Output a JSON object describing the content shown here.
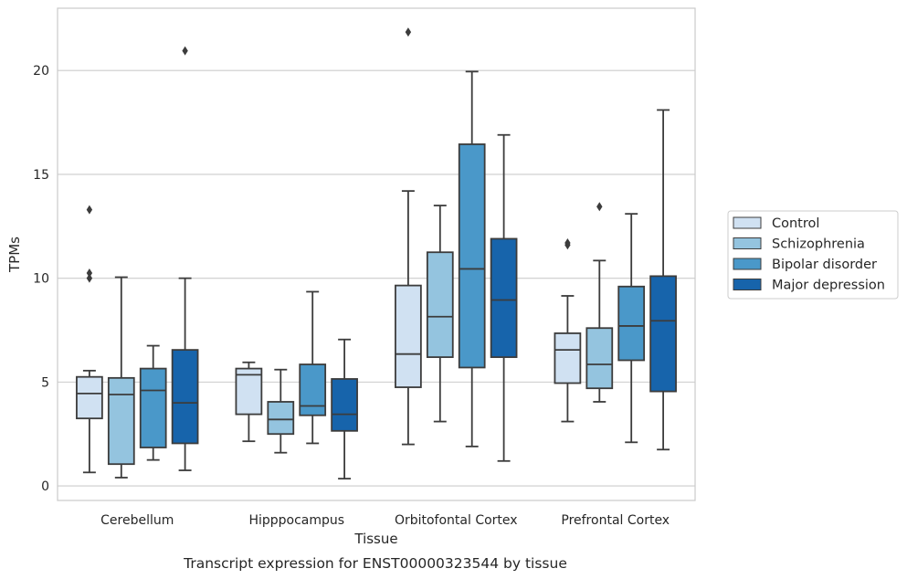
{
  "caption": "Transcript expression for ENST00000323544 by tissue",
  "chart_data": {
    "type": "box",
    "xlabel": "Tissue",
    "ylabel": "TPMs",
    "ylim": [
      -0.7,
      23.0
    ],
    "yticks": [
      0,
      5,
      10,
      15,
      20
    ],
    "grid": "horizontal",
    "legend_position": "right",
    "categories": [
      "Cerebellum",
      "Hipppocampus",
      "Orbitofontal Cortex",
      "Prefrontal Cortex"
    ],
    "series": [
      {
        "name": "Control",
        "color": "#d0e1f2",
        "boxes": [
          {
            "min": 0.65,
            "q1": 3.25,
            "median": 4.45,
            "q3": 5.25,
            "max": 5.55,
            "outliers": [
              13.3,
              10.25,
              10.0
            ]
          },
          {
            "min": 2.15,
            "q1": 3.45,
            "median": 5.35,
            "q3": 5.65,
            "max": 5.95,
            "outliers": []
          },
          {
            "min": 2.0,
            "q1": 4.75,
            "median": 6.35,
            "q3": 9.65,
            "max": 14.2,
            "outliers": [
              21.85
            ]
          },
          {
            "min": 3.1,
            "q1": 4.95,
            "median": 6.55,
            "q3": 7.35,
            "max": 9.15,
            "outliers": [
              11.7,
              11.6
            ]
          }
        ]
      },
      {
        "name": "Schizophrenia",
        "color": "#94c4df",
        "boxes": [
          {
            "min": 0.4,
            "q1": 1.05,
            "median": 4.4,
            "q3": 5.2,
            "max": 10.05,
            "outliers": []
          },
          {
            "min": 1.6,
            "q1": 2.5,
            "median": 3.2,
            "q3": 4.05,
            "max": 5.6,
            "outliers": []
          },
          {
            "min": 3.1,
            "q1": 6.2,
            "median": 8.15,
            "q3": 11.25,
            "max": 13.5,
            "outliers": []
          },
          {
            "min": 4.05,
            "q1": 4.7,
            "median": 5.85,
            "q3": 7.6,
            "max": 10.85,
            "outliers": [
              13.45
            ]
          }
        ]
      },
      {
        "name": "Bipolar disorder",
        "color": "#4a98c9",
        "boxes": [
          {
            "min": 1.25,
            "q1": 1.85,
            "median": 4.6,
            "q3": 5.65,
            "max": 6.75,
            "outliers": []
          },
          {
            "min": 2.05,
            "q1": 3.4,
            "median": 3.85,
            "q3": 5.85,
            "max": 9.35,
            "outliers": []
          },
          {
            "min": 1.9,
            "q1": 5.7,
            "median": 10.45,
            "q3": 16.45,
            "max": 19.95,
            "outliers": []
          },
          {
            "min": 2.1,
            "q1": 6.05,
            "median": 7.7,
            "q3": 9.6,
            "max": 13.1,
            "outliers": []
          }
        ]
      },
      {
        "name": "Major depression",
        "color": "#1764ab",
        "boxes": [
          {
            "min": 0.75,
            "q1": 2.05,
            "median": 4.0,
            "q3": 6.55,
            "max": 10.0,
            "outliers": [
              20.95
            ]
          },
          {
            "min": 0.35,
            "q1": 2.65,
            "median": 3.45,
            "q3": 5.15,
            "max": 7.05,
            "outliers": []
          },
          {
            "min": 1.2,
            "q1": 6.2,
            "median": 8.95,
            "q3": 11.9,
            "max": 16.9,
            "outliers": []
          },
          {
            "min": 1.75,
            "q1": 4.55,
            "median": 7.95,
            "q3": 10.1,
            "max": 18.1,
            "outliers": []
          }
        ]
      }
    ]
  }
}
